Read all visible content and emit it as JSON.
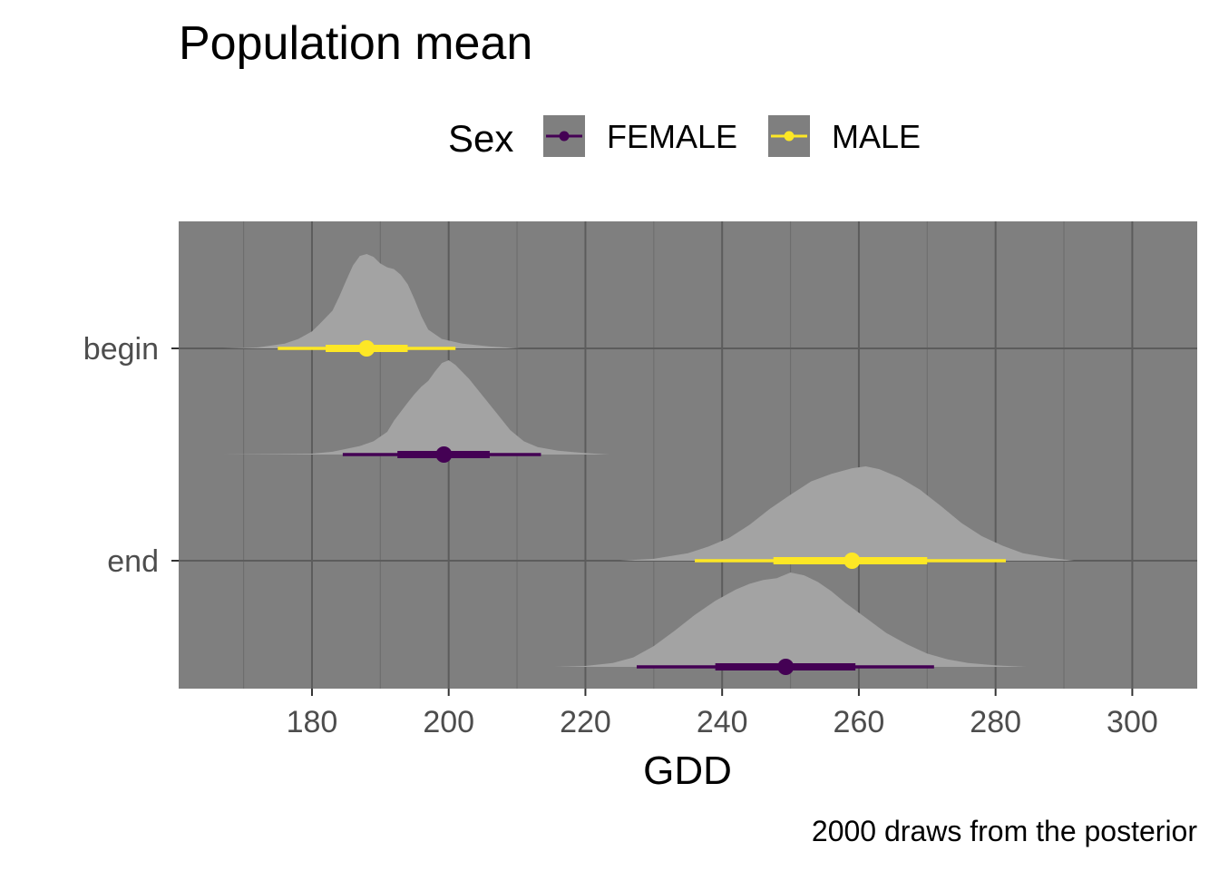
{
  "chart_data": {
    "type": "halfeye",
    "title": "Population mean",
    "caption": "2000 draws from the posterior",
    "xlabel": "GDD",
    "ylabel": "",
    "xlim": [
      160.5,
      309.5
    ],
    "x_ticks": [
      180,
      200,
      220,
      240,
      260,
      280,
      300
    ],
    "categories": [
      "begin",
      "end"
    ],
    "legend": {
      "title": "Sex",
      "position": "top",
      "entries": [
        {
          "name": "FEMALE",
          "color": "#440154"
        },
        {
          "name": "MALE",
          "color": "#FDE725"
        }
      ]
    },
    "panel_background": "#7f7f7f",
    "density_fill": "#a3a3a3",
    "grid": true,
    "series": [
      {
        "category": "begin",
        "sex": "MALE",
        "point": 188,
        "interval_66": [
          182,
          194
        ],
        "interval_95": [
          175,
          201
        ],
        "density_range": [
          167,
          210.5
        ],
        "density": [
          [
            167,
            0
          ],
          [
            172,
            0.01
          ],
          [
            176,
            0.05
          ],
          [
            178,
            0.1
          ],
          [
            180,
            0.18
          ],
          [
            181,
            0.25
          ],
          [
            183,
            0.4
          ],
          [
            184,
            0.55
          ],
          [
            185,
            0.72
          ],
          [
            186,
            0.88
          ],
          [
            187,
            0.98
          ],
          [
            188,
            1.0
          ],
          [
            189,
            0.97
          ],
          [
            190,
            0.9
          ],
          [
            191,
            0.86
          ],
          [
            192,
            0.84
          ],
          [
            193,
            0.78
          ],
          [
            194,
            0.68
          ],
          [
            195,
            0.52
          ],
          [
            196,
            0.34
          ],
          [
            197,
            0.2
          ],
          [
            199,
            0.1
          ],
          [
            202,
            0.05
          ],
          [
            206,
            0.02
          ],
          [
            210.5,
            0
          ]
        ]
      },
      {
        "category": "begin",
        "sex": "FEMALE",
        "point": 199.3,
        "interval_66": [
          192.5,
          206
        ],
        "interval_95": [
          184.5,
          213.5
        ],
        "density_range": [
          167,
          223.5
        ],
        "density": [
          [
            167,
            0
          ],
          [
            180,
            0.01
          ],
          [
            183,
            0.03
          ],
          [
            185,
            0.06
          ],
          [
            187,
            0.09
          ],
          [
            189,
            0.14
          ],
          [
            191,
            0.24
          ],
          [
            192,
            0.36
          ],
          [
            194,
            0.55
          ],
          [
            195,
            0.64
          ],
          [
            196,
            0.72
          ],
          [
            197,
            0.78
          ],
          [
            198,
            0.88
          ],
          [
            199,
            0.97
          ],
          [
            200,
            1.0
          ],
          [
            201,
            0.95
          ],
          [
            203,
            0.8
          ],
          [
            205,
            0.62
          ],
          [
            207,
            0.44
          ],
          [
            209,
            0.26
          ],
          [
            211,
            0.14
          ],
          [
            213,
            0.08
          ],
          [
            216,
            0.04
          ],
          [
            220,
            0.015
          ],
          [
            223.5,
            0
          ]
        ]
      },
      {
        "category": "end",
        "sex": "MALE",
        "point": 259,
        "interval_66": [
          247.5,
          270
        ],
        "interval_95": [
          236,
          281.5
        ],
        "density_range": [
          225,
          291.5
        ],
        "density": [
          [
            225,
            0
          ],
          [
            230,
            0.02
          ],
          [
            235,
            0.08
          ],
          [
            238,
            0.15
          ],
          [
            241,
            0.24
          ],
          [
            244,
            0.38
          ],
          [
            247,
            0.55
          ],
          [
            250,
            0.7
          ],
          [
            253,
            0.84
          ],
          [
            256,
            0.92
          ],
          [
            259,
            0.98
          ],
          [
            261,
            1.0
          ],
          [
            263,
            0.97
          ],
          [
            266,
            0.88
          ],
          [
            269,
            0.75
          ],
          [
            272,
            0.58
          ],
          [
            275,
            0.4
          ],
          [
            278,
            0.26
          ],
          [
            281,
            0.16
          ],
          [
            284,
            0.08
          ],
          [
            288,
            0.03
          ],
          [
            291.5,
            0
          ]
        ]
      },
      {
        "category": "end",
        "sex": "FEMALE",
        "point": 249.3,
        "interval_66": [
          239,
          259.5
        ],
        "interval_95": [
          227.5,
          271
        ],
        "density_range": [
          215.5,
          284.5
        ],
        "density": [
          [
            215.5,
            0
          ],
          [
            220,
            0.01
          ],
          [
            224,
            0.04
          ],
          [
            227,
            0.1
          ],
          [
            230,
            0.22
          ],
          [
            233,
            0.38
          ],
          [
            236,
            0.55
          ],
          [
            239,
            0.7
          ],
          [
            242,
            0.82
          ],
          [
            244,
            0.88
          ],
          [
            246,
            0.92
          ],
          [
            248,
            0.94
          ],
          [
            250,
            1.0
          ],
          [
            252,
            0.97
          ],
          [
            254,
            0.9
          ],
          [
            256,
            0.8
          ],
          [
            258,
            0.68
          ],
          [
            261,
            0.52
          ],
          [
            264,
            0.36
          ],
          [
            267,
            0.24
          ],
          [
            270,
            0.14
          ],
          [
            273,
            0.08
          ],
          [
            276,
            0.04
          ],
          [
            280,
            0.015
          ],
          [
            284.5,
            0
          ]
        ]
      }
    ]
  }
}
